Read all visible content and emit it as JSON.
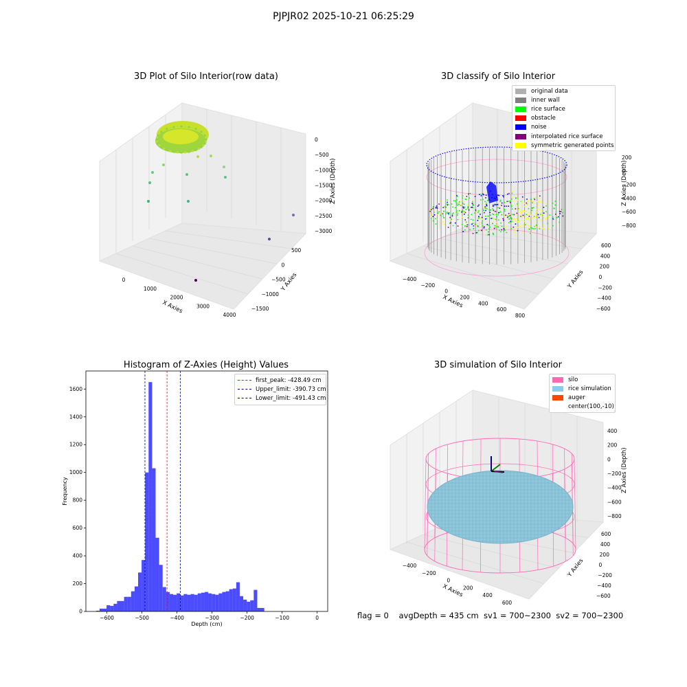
{
  "suptitle": "PJPJR02 2025-10-21 06:25:29",
  "footer": "flag = 0    avgDepth = 435 cm  sv1 = 700~2300  sv2 = 700~2300",
  "colors": {
    "histogram_bar": "#0000ff",
    "first_peak": "#ff0000",
    "limit_line": "#00008b",
    "pane": "#f2f2f2",
    "silo": "#ff69b4",
    "rice_simulation": "#87ceeb",
    "auger": "#ff4500"
  },
  "panels": {
    "raw": {
      "title": "3D Plot of Silo Interior(row data)",
      "xlabel": "X Axies",
      "ylabel": "Y Axies",
      "zlabel": "Z Axies (Depth)",
      "xticks": [
        "0",
        "1000",
        "2000",
        "3000",
        "4000"
      ],
      "yticks": [
        "500",
        "0",
        "−500",
        "−1000",
        "−1500"
      ],
      "zticks": [
        "0",
        "−500",
        "−1000",
        "−1500",
        "−2000",
        "−2500",
        "−3000"
      ]
    },
    "classify": {
      "title": "3D classify of Silo Interior",
      "xlabel": "X Axies",
      "ylabel": "Y Axies",
      "zlabel": "Z Axies (Depth)",
      "xticks": [
        "−400",
        "−200",
        "0",
        "200",
        "400",
        "600",
        "800"
      ],
      "yticks": [
        "600",
        "400",
        "200",
        "0",
        "−200",
        "−400",
        "−600"
      ],
      "zticks": [
        "200",
        "0",
        "−200",
        "−400",
        "−600",
        "−800"
      ],
      "legend": [
        {
          "label": "original data",
          "color": "#b0b0b0"
        },
        {
          "label": "inner wall",
          "color": "#808080"
        },
        {
          "label": "rice surface",
          "color": "#00ff00"
        },
        {
          "label": "obstacle",
          "color": "#ff0000"
        },
        {
          "label": "noise",
          "color": "#0000ff"
        },
        {
          "label": "interpolated rice surface",
          "color": "#800080"
        },
        {
          "label": "symmetric generated points",
          "color": "#ffff00"
        }
      ]
    },
    "simulation": {
      "title": "3D simulation of Silo Interior",
      "xlabel": "X Axies",
      "ylabel": "Y Axies",
      "zlabel": "Z Axies (Depth)",
      "xticks": [
        "−400",
        "−200",
        "0",
        "200",
        "400",
        "600"
      ],
      "yticks": [
        "600",
        "400",
        "200",
        "0",
        "−200",
        "−400",
        "−600"
      ],
      "zticks": [
        "400",
        "200",
        "0",
        "−200",
        "−400",
        "−600",
        "−800"
      ],
      "legend": [
        {
          "label": "silo",
          "color": "#ff69b4"
        },
        {
          "label": "rice simulation",
          "color": "#87ceeb"
        },
        {
          "label": "auger",
          "color": "#ff4500"
        },
        {
          "label": "center(100,-10)",
          "color": ""
        }
      ]
    }
  },
  "chart_data": {
    "type": "bar",
    "title": "Histogram of Z-Axies (Height) Values",
    "xlabel": "Depth (cm)",
    "ylabel": "Frequency",
    "xlim": [
      -660,
      30
    ],
    "ylim": [
      0,
      1730
    ],
    "xticks": [
      -600,
      -500,
      -400,
      -300,
      -200,
      -100,
      0
    ],
    "xtick_labels": [
      "−600",
      "−500",
      "−400",
      "−300",
      "−200",
      "−100",
      "0"
    ],
    "yticks": [
      0,
      200,
      400,
      600,
      800,
      1000,
      1200,
      1400,
      1600
    ],
    "yticks_labels": [
      "0",
      "200",
      "400",
      "600",
      "800",
      "1000",
      "1200",
      "1400",
      "1600"
    ],
    "bin_start": -631,
    "bin_width": 10,
    "values": [
      5,
      20,
      20,
      45,
      40,
      55,
      75,
      75,
      105,
      105,
      145,
      180,
      280,
      370,
      1000,
      1650,
      1030,
      530,
      335,
      175,
      140,
      125,
      120,
      130,
      115,
      125,
      120,
      125,
      120,
      130,
      135,
      140,
      130,
      125,
      120,
      130,
      140,
      145,
      160,
      165,
      210,
      110,
      85,
      70,
      80,
      155,
      25,
      25
    ],
    "vlines": [
      {
        "label": "first_peak: -428.49 cm",
        "x": -428.49,
        "color": "#ff0000"
      },
      {
        "label": "Upper_limit: -390.73 cm",
        "x": -390.73,
        "color": "#00008b"
      },
      {
        "label": "Lower_limit: -491.43 cm",
        "x": -491.43,
        "color": "#00008b"
      }
    ],
    "legend_position": "top-right",
    "grid": false
  }
}
